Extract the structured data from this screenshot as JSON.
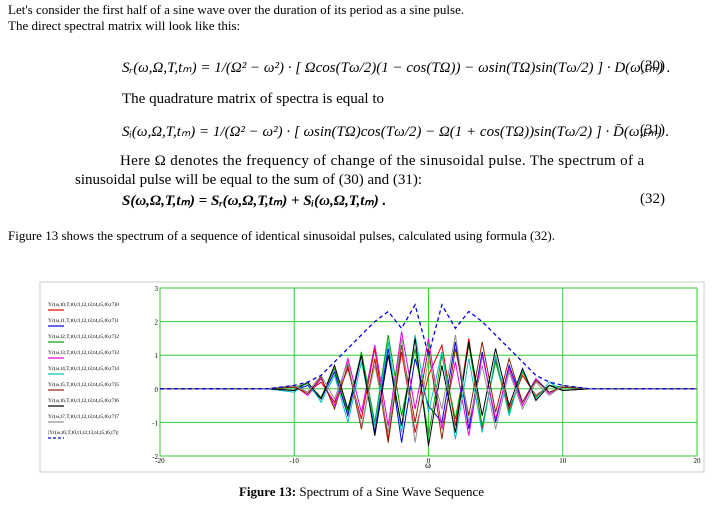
{
  "text": [
    "Let's consider the first half of a sine wave over the duration of its period as a sine pulse.",
    "The direct spectral matrix will look like this:",
    "The quadrature matrix of spectra is equal to",
    "Here Ω denotes the frequency of change of the sinusoidal pulse. The spectrum of a",
    "sinusoidal pulse will be equal to the sum of (30) and (31):",
    "Figure 13 shows the spectrum of a sequence of identical sinusoidal pulses, calculated using formula (32)."
  ],
  "equations": [
    {
      "text": "Sᵣ(ω,Ω,T,tₘ) = 1/(Ω² − ω²) · [ Ωcos(Tω/2)(1 − cos(TΩ)) − ωsin(TΩ)sin(Tω/2) ] · D(ω,tₘ) .",
      "number": "(30)"
    },
    {
      "text": "Sᵢ(ω,Ω,T,tₘ) = 1/(Ω² − ω²) · [ ωsin(TΩ)cos(Tω/2) − Ω(1 + cos(TΩ))sin(Tω/2) ] · D̄(ω,tₘ) .",
      "number": "(31)"
    },
    {
      "text": "S(ω,Ω,T,tₘ) = Sᵣ(ω,Ω,T,tₘ) + Sᵢ(ω,Ω,T,tₘ) .",
      "number": "(32)"
    }
  ],
  "chart_data": {
    "type": "line",
    "x_label": "ω",
    "x": [
      -20,
      -12,
      -10,
      -9,
      -8,
      -7,
      -6,
      -5,
      -4,
      -3,
      -2,
      -1,
      0,
      1,
      2,
      3,
      4,
      5,
      6,
      7,
      8,
      9,
      10,
      12,
      20
    ],
    "xlim": [
      -20,
      20
    ],
    "xticks": [
      -20,
      -10,
      0,
      10,
      20
    ],
    "ylim": [
      -2,
      3
    ],
    "yticks": [
      3,
      2,
      1,
      0,
      -1,
      -2
    ],
    "grid": true,
    "series": [
      {
        "name": "Yr(ω,t0,T,t0,t1,t2,t3,t4,t5,t6,t7)0",
        "color": "#e00000",
        "values": [
          0,
          0,
          0.05,
          -0.1,
          0.2,
          -0.4,
          0.6,
          -0.9,
          1.2,
          -1.5,
          1.1,
          -1.3,
          0.4,
          1.3,
          -1.1,
          1.5,
          -1.2,
          0.9,
          -0.6,
          0.4,
          -0.2,
          0.1,
          -0.05,
          0,
          0
        ]
      },
      {
        "name": "Yr(ω,t1,T,t0,t1,t2,t3,t4,t5,t6,t7)1",
        "color": "#0000e0",
        "values": [
          0,
          0,
          -0.05,
          0.1,
          -0.3,
          0.5,
          -0.8,
          1.0,
          -1.3,
          1.2,
          -1.6,
          0.9,
          -0.5,
          -1.0,
          1.4,
          -1.2,
          1.1,
          -1.0,
          0.7,
          -0.4,
          0.3,
          -0.1,
          0.05,
          0,
          0
        ]
      },
      {
        "name": "Yr(ω,t2,T,t0,t1,t2,t3,t4,t5,t6,t7)2",
        "color": "#00a000",
        "values": [
          0,
          0,
          0.05,
          0.15,
          -0.25,
          0.6,
          -0.7,
          1.1,
          -1.0,
          1.6,
          -0.8,
          1.2,
          -1.4,
          1.0,
          -0.9,
          1.3,
          -1.1,
          0.8,
          -0.7,
          0.5,
          -0.25,
          0.1,
          0.05,
          0,
          0
        ]
      },
      {
        "name": "Yr(ω,t3,T,t0,t1,t2,t3,t4,t5,t6,t7)3",
        "color": "#e000e0",
        "values": [
          0,
          0,
          0.1,
          -0.2,
          0.3,
          -0.5,
          0.9,
          -0.7,
          1.3,
          -1.1,
          1.7,
          -0.6,
          1.5,
          -1.2,
          0.8,
          -1.4,
          1.0,
          -0.9,
          0.6,
          -0.5,
          0.3,
          -0.15,
          0.05,
          0,
          0
        ]
      },
      {
        "name": "Yr(ω,t4,T,t0,t1,t2,t3,t4,t5,t6,t7)4",
        "color": "#00c0c0",
        "values": [
          0,
          0,
          -0.1,
          0.2,
          -0.4,
          0.4,
          -1.0,
          0.8,
          -1.1,
          1.4,
          -1.3,
          1.6,
          -0.7,
          1.1,
          -1.5,
          0.9,
          -1.3,
          1.0,
          -0.8,
          0.6,
          -0.3,
          0.2,
          -0.05,
          0,
          0
        ]
      },
      {
        "name": "Yr(ω,t5,T,t0,t1,t2,t3,t4,t5,t6,t7)5",
        "color": "#8b2500",
        "values": [
          0,
          0,
          0.05,
          -0.15,
          0.35,
          -0.6,
          0.7,
          -1.2,
          0.9,
          -1.6,
          1.3,
          -1.0,
          1.2,
          -1.5,
          1.2,
          -0.8,
          1.4,
          -0.7,
          0.9,
          -0.4,
          0.25,
          -0.1,
          0.05,
          0,
          0
        ]
      },
      {
        "name": "Yr(ω,t6,T,t0,t1,t2,t3,t4,t5,t6,t7)6",
        "color": "#000000",
        "values": [
          0,
          0,
          -0.05,
          0.2,
          -0.3,
          0.7,
          -0.6,
          1.0,
          -1.4,
          1.0,
          -1.1,
          1.5,
          -1.7,
          0.7,
          -1.3,
          1.4,
          -0.8,
          1.2,
          -0.5,
          0.6,
          -0.35,
          0.1,
          -0.05,
          0,
          0
        ]
      },
      {
        "name": "Yr(ω,t7,T,t0,t1,t2,t3,t4,t5,t6,t7)7",
        "color": "#909090",
        "values": [
          0,
          0,
          0.1,
          -0.1,
          0.4,
          -0.3,
          0.8,
          -1.1,
          0.7,
          -1.3,
          1.5,
          -1.6,
          0.9,
          -0.6,
          1.6,
          -1.0,
          0.7,
          -1.2,
          0.5,
          -0.6,
          0.2,
          -0.2,
          0.1,
          0,
          0
        ]
      },
      {
        "name": "|Yr(ω,t0,T,t0,t1,t2,t3,t4,t5,t6,t7)|",
        "color": "#0000e0",
        "dashed": true,
        "values": [
          0,
          0,
          0.1,
          0.2,
          0.4,
          0.8,
          1.2,
          1.6,
          2.0,
          2.3,
          1.8,
          2.5,
          1.0,
          2.5,
          1.8,
          2.3,
          2.0,
          1.6,
          1.2,
          0.8,
          0.4,
          0.2,
          0.1,
          0,
          0
        ]
      }
    ]
  },
  "caption": {
    "label": "Figure 13:",
    "text": "Spectrum of a Sine Wave Sequence"
  }
}
